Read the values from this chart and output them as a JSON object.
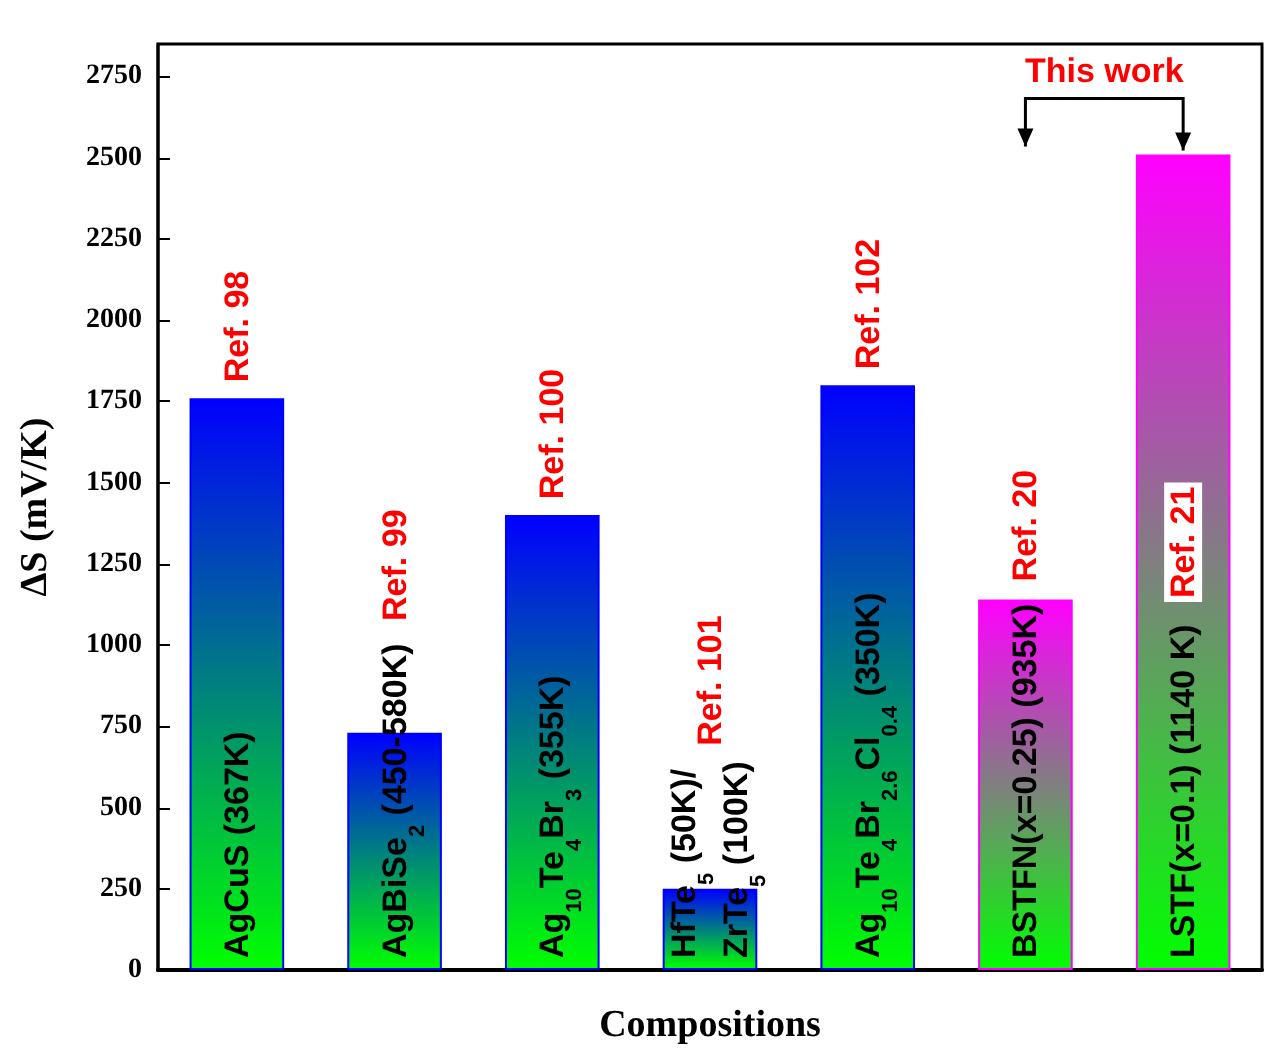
{
  "chart_data": {
    "type": "bar",
    "xlabel": "Compositions",
    "ylabel": "ΔS (mV/K)",
    "categories": [
      "AgCuS (367K)",
      "AgBiSe$_{2}$ (450-580K)",
      "Ag$_{10}$Te$_{4}$Br$_{3}$ (355K)",
      "HfTe$_{5}$ (50K)/\nZrTe$_{5}$ (100K)",
      "Ag$_{10}$Te$_{4}$Br$_{2.6}$Cl$_{0.4}$ (350K)",
      "BSTFN(x=0.25) (935K)",
      "LSTF(x=0.1) (1140 K)"
    ],
    "values": [
      1760,
      730,
      1400,
      250,
      1800,
      1140,
      2510
    ],
    "colors": [
      "#0000ff",
      "#0000ff",
      "#0000ff",
      "#0000ff",
      "#0000ff",
      "#ff00ff",
      "#ff00ff"
    ],
    "ylim": [
      0,
      2850
    ],
    "yticks": [
      0,
      250,
      500,
      750,
      1000,
      1250,
      1500,
      1750,
      2000,
      2250,
      2500,
      2750
    ],
    "grid": false,
    "annotations": [
      "Ref. 98",
      "Ref. 99",
      "Ref. 100",
      "Ref. 101",
      "Ref. 102",
      "Ref. 20",
      "Ref. 21",
      "This work"
    ]
  }
}
